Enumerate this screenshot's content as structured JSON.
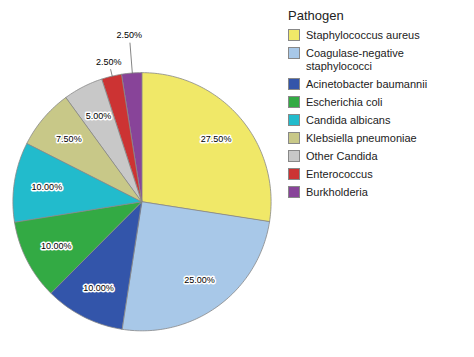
{
  "chart_data": {
    "type": "pie",
    "title": "Pathogen",
    "categories": [
      "Staphylococcus aureus",
      "Coagulase-negative\nstaphylococci",
      "Acinetobacter baumannii",
      "Escherichia coli",
      "Candida albicans",
      "Klebsiella pneumoniae",
      "Other Candida",
      "Enterococcus",
      "Burkholderia"
    ],
    "values": [
      27.5,
      25.0,
      10.0,
      10.0,
      10.0,
      7.5,
      5.0,
      2.5,
      2.5
    ],
    "value_labels": [
      "27.50%",
      "25.00%",
      "10.00%",
      "10.00%",
      "10.00%",
      "7.50%",
      "5.00%",
      "2.50%",
      "2.50%"
    ],
    "colors": [
      "#f0e868",
      "#a8c8e8",
      "#3355aa",
      "#33aa44",
      "#22bbcc",
      "#c8c888",
      "#c8c8c8",
      "#cc3333",
      "#884499"
    ],
    "data_labels": true,
    "legend": "right"
  }
}
